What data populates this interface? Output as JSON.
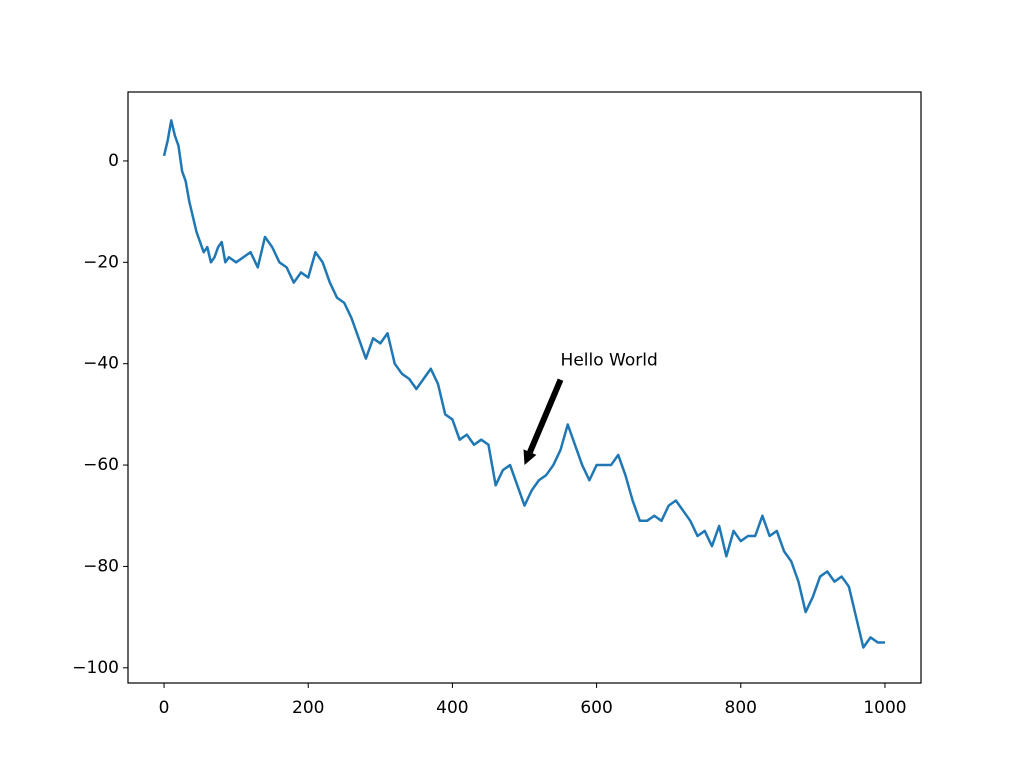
{
  "chart_data": {
    "type": "line",
    "x": [
      0,
      5,
      10,
      15,
      20,
      25,
      30,
      35,
      40,
      45,
      50,
      55,
      60,
      65,
      70,
      75,
      80,
      85,
      90,
      100,
      110,
      120,
      130,
      140,
      150,
      160,
      170,
      180,
      190,
      200,
      210,
      220,
      230,
      240,
      250,
      260,
      270,
      280,
      290,
      300,
      310,
      320,
      330,
      340,
      350,
      360,
      370,
      380,
      390,
      400,
      410,
      420,
      430,
      440,
      450,
      460,
      470,
      480,
      490,
      500,
      510,
      520,
      530,
      540,
      550,
      560,
      570,
      580,
      590,
      600,
      610,
      620,
      630,
      640,
      650,
      660,
      670,
      680,
      690,
      700,
      710,
      720,
      730,
      740,
      750,
      760,
      770,
      780,
      790,
      800,
      810,
      820,
      830,
      840,
      850,
      860,
      870,
      880,
      890,
      900,
      910,
      920,
      930,
      940,
      950,
      960,
      970,
      980,
      990,
      1000
    ],
    "series": [
      {
        "color": "#1f77b4",
        "values": [
          1,
          4,
          8,
          5,
          3,
          -2,
          -4,
          -8,
          -11,
          -14,
          -16,
          -18,
          -17,
          -20,
          -19,
          -17,
          -16,
          -20,
          -19,
          -20,
          -19,
          -18,
          -21,
          -15,
          -17,
          -20,
          -21,
          -24,
          -22,
          -23,
          -18,
          -20,
          -24,
          -27,
          -28,
          -31,
          -35,
          -39,
          -35,
          -36,
          -34,
          -40,
          -42,
          -43,
          -45,
          -43,
          -41,
          -44,
          -50,
          -51,
          -55,
          -54,
          -56,
          -55,
          -56,
          -64,
          -61,
          -60,
          -64,
          -68,
          -65,
          -63,
          -62,
          -60,
          -57,
          -52,
          -56,
          -60,
          -63,
          -60,
          -60,
          -60,
          -58,
          -62,
          -67,
          -71,
          -71,
          -70,
          -71,
          -68,
          -67,
          -69,
          -71,
          -74,
          -73,
          -76,
          -72,
          -78,
          -73,
          -75,
          -74,
          -74,
          -70,
          -74,
          -73,
          -77,
          -79,
          -83,
          -89,
          -86,
          -82,
          -81,
          -83,
          -82,
          -84,
          -90,
          -96,
          -94,
          -95,
          -95
        ]
      }
    ],
    "xlim": [
      -50,
      1050
    ],
    "ylim": [
      -103,
      13.6
    ],
    "xticks": [
      0,
      200,
      400,
      600,
      800,
      1000
    ],
    "yticks": [
      {
        "value": -100,
        "label": "−100"
      },
      {
        "value": -80,
        "label": "−80"
      },
      {
        "value": -60,
        "label": "−60"
      },
      {
        "value": -40,
        "label": "−40"
      },
      {
        "value": -20,
        "label": "−20"
      },
      0
    ],
    "annotations": [
      {
        "text": "Hello World",
        "xy": [
          500,
          -60
        ],
        "xytext": [
          550,
          -40
        ]
      }
    ]
  }
}
